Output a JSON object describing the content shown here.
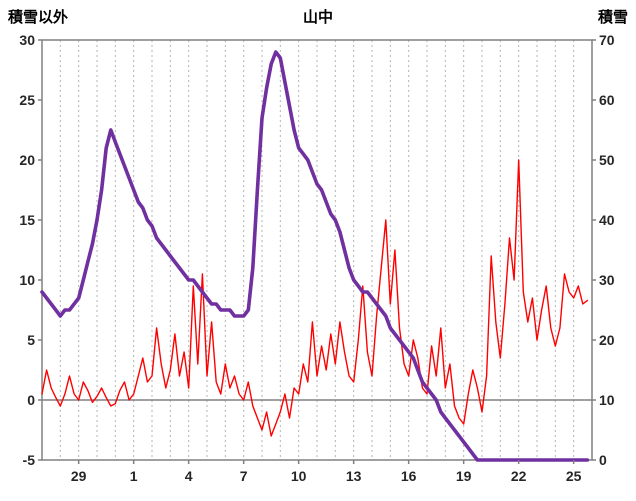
{
  "chart_data": {
    "type": "line",
    "title": "山中",
    "left_axis": {
      "label": "積雪以外",
      "min": -5,
      "max": 30,
      "ticks": [
        30,
        25,
        20,
        15,
        10,
        5,
        0,
        -5
      ]
    },
    "right_axis": {
      "label": "積雪",
      "min": 0,
      "max": 70,
      "ticks": [
        70,
        60,
        50,
        40,
        30,
        20,
        10,
        0
      ]
    },
    "x_axis": {
      "min_t": 0,
      "max_t": 30,
      "step_days": 0.25,
      "gridline_every": 1,
      "labels": [
        {
          "t": 2,
          "text": "29"
        },
        {
          "t": 5,
          "text": "1"
        },
        {
          "t": 8,
          "text": "4"
        },
        {
          "t": 11,
          "text": "7"
        },
        {
          "t": 14,
          "text": "10"
        },
        {
          "t": 17,
          "text": "13"
        },
        {
          "t": 20,
          "text": "16"
        },
        {
          "t": 23,
          "text": "19"
        },
        {
          "t": 26,
          "text": "22"
        },
        {
          "t": 29,
          "text": "25"
        }
      ]
    },
    "grid": "vertical-dashed",
    "legend": "none",
    "zero_line_left_axis": 0,
    "frame_color": "#808080",
    "gridline_color": "#b3b3b3",
    "series": [
      {
        "name": "積雪以外",
        "axis": "left",
        "color": "#ff0000",
        "width": 1.4,
        "values": [
          0.5,
          2.5,
          1.0,
          0.2,
          -0.5,
          0.5,
          2.0,
          0.5,
          0.0,
          1.5,
          0.8,
          -0.2,
          0.3,
          1.0,
          0.2,
          -0.5,
          -0.3,
          0.8,
          1.5,
          0.0,
          0.5,
          2.0,
          3.5,
          1.5,
          2.0,
          6.0,
          3.0,
          1.0,
          2.5,
          5.5,
          2.0,
          4.0,
          1.0,
          9.5,
          3.0,
          10.5,
          2.0,
          6.5,
          1.5,
          0.5,
          3.0,
          1.0,
          2.0,
          0.5,
          0.0,
          1.5,
          -0.5,
          -1.5,
          -2.5,
          -1.0,
          -3.0,
          -2.0,
          -1.0,
          0.5,
          -1.5,
          1.0,
          0.5,
          3.0,
          1.5,
          6.5,
          2.0,
          4.5,
          2.5,
          5.5,
          3.0,
          6.5,
          4.0,
          2.0,
          1.5,
          5.0,
          9.5,
          4.0,
          2.0,
          7.0,
          11.0,
          15.0,
          8.0,
          12.5,
          6.0,
          3.0,
          2.0,
          5.0,
          3.5,
          1.0,
          0.5,
          4.5,
          2.0,
          6.0,
          1.0,
          3.0,
          -0.5,
          -1.5,
          -2.0,
          0.5,
          2.5,
          1.0,
          -1.0,
          2.0,
          12.0,
          6.5,
          3.5,
          8.0,
          13.5,
          10.0,
          20.0,
          9.0,
          6.5,
          8.5,
          5.0,
          7.5,
          9.5,
          6.0,
          4.5,
          6.0,
          10.5,
          9.0,
          8.5,
          9.5,
          8.0,
          8.3
        ]
      },
      {
        "name": "積雪",
        "axis": "right",
        "color": "#7030a0",
        "width": 3.6,
        "values": [
          28,
          27,
          26,
          25,
          24,
          25,
          25,
          26,
          27,
          30,
          33,
          36,
          40,
          45,
          52,
          55,
          53,
          51,
          49,
          47,
          45,
          43,
          42,
          40,
          39,
          37,
          36,
          35,
          34,
          33,
          32,
          31,
          30,
          30,
          29,
          28,
          27,
          26,
          26,
          25,
          25,
          25,
          24,
          24,
          24,
          25,
          32,
          45,
          57,
          62,
          66,
          68,
          67,
          63,
          59,
          55,
          52,
          51,
          50,
          48,
          46,
          45,
          43,
          41,
          40,
          38,
          35,
          32,
          30,
          29,
          28,
          28,
          27,
          26,
          25,
          24,
          22,
          21,
          20,
          19,
          18,
          17,
          15,
          13,
          12,
          11,
          10,
          8,
          7,
          6,
          5,
          4,
          3,
          2,
          1,
          0,
          0,
          0,
          0,
          0,
          0,
          0,
          0,
          0,
          0,
          0,
          0,
          0,
          0,
          0,
          0,
          0,
          0,
          0,
          0,
          0,
          0,
          0,
          0,
          0
        ]
      }
    ]
  }
}
